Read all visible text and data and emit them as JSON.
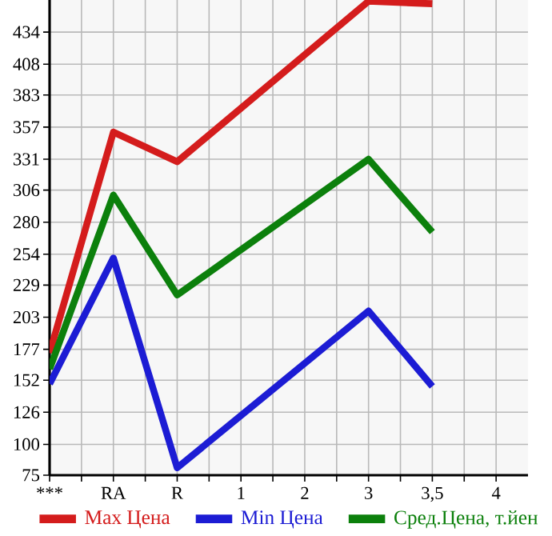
{
  "chart_data": {
    "type": "line",
    "categories": [
      "***",
      "RA",
      "R",
      "1",
      "2",
      "3",
      "3,5",
      "4"
    ],
    "series": [
      {
        "name": "Max Цена",
        "color": "#d41c1c",
        "values": [
          174,
          353,
          329,
          null,
          null,
          459,
          457,
          null
        ]
      },
      {
        "name": "Min Цена",
        "color": "#1c1cd4",
        "values": [
          149,
          251,
          81,
          null,
          null,
          208,
          147,
          null
        ]
      },
      {
        "name": "Сред.Цена, т.йен",
        "color": "#0c800c",
        "values": [
          161,
          302,
          221,
          null,
          null,
          331,
          272,
          null
        ]
      }
    ],
    "ylim": [
      75,
      460
    ],
    "yticks": [
      75,
      100,
      126,
      152,
      177,
      203,
      229,
      254,
      280,
      306,
      331,
      357,
      383,
      408,
      434
    ],
    "grid": true,
    "legend": "bottom",
    "marker": "none",
    "line_style": "solid"
  }
}
